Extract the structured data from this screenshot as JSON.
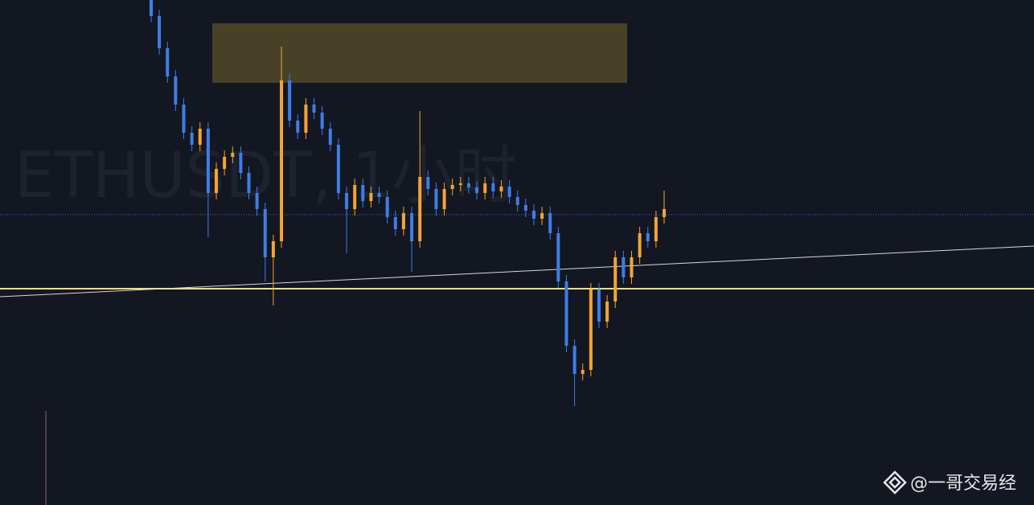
{
  "chart_data": {
    "type": "candlestick",
    "watermark": "ETHUSDT, 1小时",
    "credit": "@一哥交易经",
    "up_color": "#f5a431",
    "down_color": "#3d7ee6",
    "ylim": [
      0,
      628
    ],
    "series": [
      {
        "open": [
          628,
          608,
          568,
          533,
          498,
          463,
          448,
          468,
          388,
          418,
          433,
          438,
          413,
          388,
          368,
          308,
          328,
          528,
          478,
          463,
          498,
          488,
          468,
          448,
          388,
          368,
          398,
          378,
          388,
          383,
          358,
          343,
          363,
          328,
          408,
          393,
          368,
          393,
          398,
          400,
          395,
          388,
          400,
          390,
          396,
          383,
          373,
          366,
          356,
          363,
          338,
          278,
          198,
          163,
          168,
          268,
          228,
          253,
          308,
          283,
          308,
          338,
          328,
          358
        ],
        "high": [
          636,
          616,
          576,
          541,
          506,
          471,
          476,
          476,
          426,
          441,
          446,
          446,
          421,
          396,
          376,
          336,
          570,
          536,
          486,
          506,
          506,
          496,
          476,
          456,
          396,
          406,
          406,
          396,
          396,
          391,
          366,
          371,
          371,
          490,
          416,
          401,
          401,
          406,
          408,
          408,
          403,
          408,
          408,
          404,
          404,
          391,
          381,
          374,
          371,
          371,
          346,
          286,
          206,
          176,
          276,
          276,
          261,
          316,
          316,
          316,
          346,
          346,
          366,
          391
        ],
        "low": [
          600,
          560,
          525,
          490,
          455,
          440,
          440,
          333,
          380,
          410,
          425,
          405,
          380,
          360,
          278,
          248,
          320,
          470,
          455,
          455,
          480,
          460,
          440,
          380,
          313,
          360,
          370,
          370,
          375,
          350,
          335,
          335,
          290,
          320,
          385,
          360,
          360,
          385,
          390,
          387,
          380,
          380,
          382,
          382,
          375,
          365,
          358,
          348,
          348,
          330,
          270,
          190,
          123,
          155,
          160,
          220,
          220,
          245,
          275,
          275,
          300,
          320,
          320,
          350
        ],
        "close": [
          608,
          568,
          533,
          498,
          463,
          448,
          468,
          388,
          418,
          433,
          438,
          413,
          388,
          368,
          308,
          328,
          528,
          478,
          463,
          498,
          488,
          468,
          448,
          388,
          368,
          398,
          378,
          388,
          383,
          358,
          343,
          363,
          328,
          408,
          393,
          368,
          393,
          398,
          400,
          395,
          388,
          400,
          390,
          396,
          383,
          373,
          366,
          356,
          363,
          338,
          278,
          198,
          163,
          168,
          268,
          228,
          253,
          308,
          283,
          308,
          338,
          328,
          358,
          368
        ]
      }
    ]
  }
}
